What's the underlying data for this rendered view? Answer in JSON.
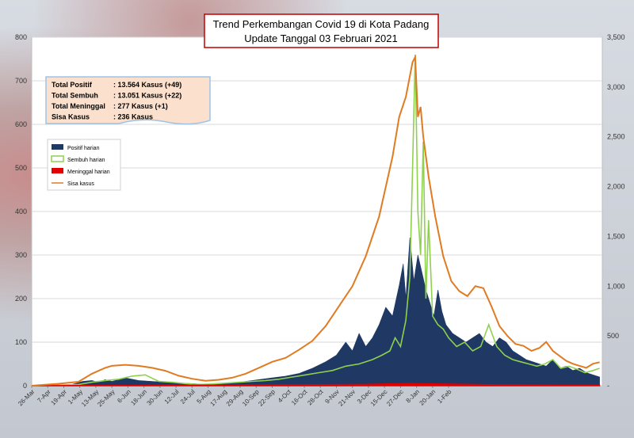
{
  "chart_data": {
    "type": "area",
    "title": "Trend Perkembangan Covid 19 di Kota Padang",
    "subtitle": "Update Tanggal  03 Februari 2021",
    "summary": [
      {
        "label": "Total Positif",
        "value": ": 13.564 Kasus (+49)"
      },
      {
        "label": "Total Sembuh",
        "value": ": 13.051 Kasus (+22)"
      },
      {
        "label": "Total Meninggal",
        "value": ":     277 Kasus (+1)"
      },
      {
        "label": "Sisa Kasus",
        "value": ":     236 Kasus"
      }
    ],
    "legend": [
      "Positif harian",
      "Sembuh harian",
      "Meninggal harian",
      "Sisa kasus"
    ],
    "legend_position": "left",
    "colors": {
      "positif": "#1f3864",
      "sembuh": "#8fd14f",
      "meninggal": "#e00000",
      "sisa": "#e07b22"
    },
    "x_tick_labels": [
      "26-Mar",
      "7-Apr",
      "19-Apr",
      "1-May",
      "13-May",
      "25-May",
      "6-Jun",
      "18-Jun",
      "30-Jun",
      "12-Jul",
      "24-Jul",
      "5-Aug",
      "17-Aug",
      "29-Aug",
      "10-Sep",
      "22-Sep",
      "4-Oct",
      "16-Oct",
      "28-Oct",
      "9-Nov",
      "21-Nov",
      "3-Dec",
      "15-Dec",
      "27-Dec",
      "8-Jan",
      "20-Jan",
      "1-Feb"
    ],
    "y_left": {
      "min": 0,
      "max": 800,
      "ticks": [
        "0",
        "100",
        "200",
        "300",
        "400",
        "500",
        "600",
        "700",
        "800"
      ]
    },
    "y_right": {
      "min": 0,
      "max": 3500,
      "ticks": [
        "-",
        "500",
        "1,000",
        "1,500",
        "2,000",
        "2,500",
        "3,000",
        "3,500"
      ]
    },
    "series": [
      {
        "name": "Positif harian",
        "axis": "left",
        "points": [
          [
            0,
            0
          ],
          [
            10,
            1
          ],
          [
            20,
            2
          ],
          [
            30,
            3
          ],
          [
            38,
            10
          ],
          [
            45,
            12
          ],
          [
            50,
            8
          ],
          [
            55,
            14
          ],
          [
            60,
            10
          ],
          [
            70,
            18
          ],
          [
            80,
            12
          ],
          [
            90,
            10
          ],
          [
            100,
            8
          ],
          [
            110,
            6
          ],
          [
            120,
            5
          ],
          [
            130,
            3
          ],
          [
            140,
            4
          ],
          [
            150,
            6
          ],
          [
            160,
            10
          ],
          [
            170,
            14
          ],
          [
            180,
            18
          ],
          [
            190,
            22
          ],
          [
            200,
            28
          ],
          [
            210,
            40
          ],
          [
            220,
            55
          ],
          [
            228,
            70
          ],
          [
            235,
            100
          ],
          [
            240,
            80
          ],
          [
            245,
            120
          ],
          [
            250,
            90
          ],
          [
            255,
            110
          ],
          [
            260,
            140
          ],
          [
            265,
            180
          ],
          [
            270,
            160
          ],
          [
            275,
            230
          ],
          [
            278,
            280
          ],
          [
            280,
            200
          ],
          [
            283,
            340
          ],
          [
            286,
            240
          ],
          [
            289,
            300
          ],
          [
            292,
            260
          ],
          [
            295,
            220
          ],
          [
            298,
            190
          ],
          [
            301,
            160
          ],
          [
            304,
            220
          ],
          [
            307,
            170
          ],
          [
            310,
            140
          ],
          [
            315,
            120
          ],
          [
            320,
            110
          ],
          [
            325,
            100
          ],
          [
            330,
            110
          ],
          [
            335,
            120
          ],
          [
            340,
            100
          ],
          [
            345,
            90
          ],
          [
            350,
            110
          ],
          [
            355,
            100
          ],
          [
            360,
            80
          ],
          [
            365,
            70
          ],
          [
            370,
            60
          ],
          [
            375,
            55
          ],
          [
            380,
            50
          ],
          [
            385,
            45
          ],
          [
            390,
            60
          ],
          [
            395,
            40
          ],
          [
            400,
            45
          ],
          [
            405,
            35
          ],
          [
            410,
            40
          ],
          [
            415,
            30
          ],
          [
            420,
            25
          ],
          [
            425,
            20
          ]
        ]
      },
      {
        "name": "Sembuh harian",
        "axis": "left",
        "points": [
          [
            0,
            0
          ],
          [
            20,
            1
          ],
          [
            35,
            3
          ],
          [
            45,
            8
          ],
          [
            55,
            12
          ],
          [
            65,
            15
          ],
          [
            75,
            22
          ],
          [
            85,
            25
          ],
          [
            95,
            10
          ],
          [
            105,
            8
          ],
          [
            115,
            5
          ],
          [
            125,
            3
          ],
          [
            135,
            4
          ],
          [
            145,
            6
          ],
          [
            155,
            8
          ],
          [
            165,
            10
          ],
          [
            175,
            12
          ],
          [
            185,
            15
          ],
          [
            195,
            20
          ],
          [
            205,
            25
          ],
          [
            215,
            30
          ],
          [
            225,
            35
          ],
          [
            235,
            45
          ],
          [
            245,
            50
          ],
          [
            255,
            60
          ],
          [
            262,
            70
          ],
          [
            268,
            80
          ],
          [
            272,
            110
          ],
          [
            276,
            90
          ],
          [
            280,
            150
          ],
          [
            283,
            250
          ],
          [
            285,
            500
          ],
          [
            287,
            760
          ],
          [
            289,
            400
          ],
          [
            291,
            300
          ],
          [
            293,
            560
          ],
          [
            295,
            200
          ],
          [
            297,
            380
          ],
          [
            300,
            160
          ],
          [
            304,
            140
          ],
          [
            308,
            130
          ],
          [
            312,
            110
          ],
          [
            318,
            90
          ],
          [
            324,
            100
          ],
          [
            330,
            80
          ],
          [
            336,
            90
          ],
          [
            342,
            140
          ],
          [
            348,
            90
          ],
          [
            354,
            70
          ],
          [
            360,
            60
          ],
          [
            366,
            55
          ],
          [
            372,
            50
          ],
          [
            378,
            45
          ],
          [
            384,
            50
          ],
          [
            390,
            60
          ],
          [
            396,
            40
          ],
          [
            402,
            45
          ],
          [
            408,
            38
          ],
          [
            414,
            30
          ],
          [
            420,
            35
          ],
          [
            425,
            40
          ]
        ]
      },
      {
        "name": "Meninggal harian",
        "axis": "left",
        "points": [
          [
            0,
            0
          ],
          [
            100,
            1
          ],
          [
            200,
            2
          ],
          [
            250,
            3
          ],
          [
            280,
            5
          ],
          [
            300,
            4
          ],
          [
            350,
            2
          ],
          [
            400,
            1
          ],
          [
            425,
            1
          ]
        ]
      },
      {
        "name": "Sisa kasus",
        "axis": "right",
        "points": [
          [
            0,
            0
          ],
          [
            20,
            20
          ],
          [
            35,
            40
          ],
          [
            45,
            120
          ],
          [
            55,
            180
          ],
          [
            60,
            200
          ],
          [
            70,
            210
          ],
          [
            80,
            200
          ],
          [
            90,
            180
          ],
          [
            100,
            150
          ],
          [
            110,
            100
          ],
          [
            120,
            70
          ],
          [
            130,
            50
          ],
          [
            140,
            60
          ],
          [
            150,
            80
          ],
          [
            160,
            120
          ],
          [
            170,
            180
          ],
          [
            180,
            240
          ],
          [
            190,
            280
          ],
          [
            200,
            360
          ],
          [
            210,
            450
          ],
          [
            220,
            600
          ],
          [
            230,
            800
          ],
          [
            240,
            1000
          ],
          [
            250,
            1300
          ],
          [
            260,
            1700
          ],
          [
            270,
            2300
          ],
          [
            275,
            2700
          ],
          [
            280,
            2900
          ],
          [
            285,
            3250
          ],
          [
            287,
            3300
          ],
          [
            289,
            2700
          ],
          [
            291,
            2800
          ],
          [
            293,
            2500
          ],
          [
            297,
            2100
          ],
          [
            302,
            1700
          ],
          [
            308,
            1300
          ],
          [
            314,
            1050
          ],
          [
            320,
            950
          ],
          [
            326,
            900
          ],
          [
            332,
            1000
          ],
          [
            338,
            980
          ],
          [
            344,
            800
          ],
          [
            350,
            600
          ],
          [
            356,
            500
          ],
          [
            362,
            420
          ],
          [
            368,
            400
          ],
          [
            374,
            350
          ],
          [
            380,
            380
          ],
          [
            385,
            440
          ],
          [
            390,
            350
          ],
          [
            395,
            300
          ],
          [
            400,
            250
          ],
          [
            405,
            220
          ],
          [
            410,
            200
          ],
          [
            415,
            180
          ],
          [
            420,
            220
          ],
          [
            425,
            236
          ]
        ]
      }
    ]
  }
}
